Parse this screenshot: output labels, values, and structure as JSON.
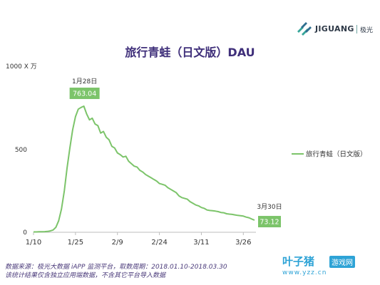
{
  "brand": {
    "name": "JIGUANG",
    "name_cn": "极光"
  },
  "watermark": {
    "logo": "叶子猪",
    "tag": "游戏网",
    "url": "www.yzz.cn"
  },
  "footer": {
    "line1": "数据来源：极光大数据 iAPP 监测平台，取数周期：2018.01.10-2018.03.30",
    "line2": "该统计结果仅含独立应用端数据，不含其它平台导入数据"
  },
  "colors": {
    "line": "#7cc46a",
    "callout_bg": "#7cc46a",
    "title": "#3f2f7a",
    "axis": "#bdbdbd"
  },
  "chart_data": {
    "type": "line",
    "title": "旅行青蛙（日文版）DAU",
    "ylabel": "1000 X 万",
    "xlabel": "",
    "ylim": [
      0,
      1000
    ],
    "yticks": [
      "0",
      "500",
      "1000"
    ],
    "xticks": [
      "1/10",
      "1/25",
      "2/9",
      "2/24",
      "3/11",
      "3/26"
    ],
    "legend_position": "right",
    "grid": false,
    "series": [
      {
        "name": "旅行青蛙（日文版）",
        "x": [
          "1/10",
          "1/11",
          "1/12",
          "1/13",
          "1/14",
          "1/15",
          "1/16",
          "1/17",
          "1/18",
          "1/19",
          "1/20",
          "1/21",
          "1/22",
          "1/23",
          "1/24",
          "1/25",
          "1/26",
          "1/27",
          "1/28",
          "1/29",
          "1/30",
          "1/31",
          "2/1",
          "2/2",
          "2/3",
          "2/4",
          "2/5",
          "2/6",
          "2/7",
          "2/8",
          "2/9",
          "2/10",
          "2/11",
          "2/12",
          "2/13",
          "2/14",
          "2/15",
          "2/16",
          "2/17",
          "2/18",
          "2/19",
          "2/20",
          "2/21",
          "2/22",
          "2/23",
          "2/24",
          "2/25",
          "2/26",
          "2/27",
          "2/28",
          "3/1",
          "3/2",
          "3/3",
          "3/4",
          "3/5",
          "3/6",
          "3/7",
          "3/8",
          "3/9",
          "3/10",
          "3/11",
          "3/12",
          "3/13",
          "3/14",
          "3/15",
          "3/16",
          "3/17",
          "3/18",
          "3/19",
          "3/20",
          "3/21",
          "3/22",
          "3/23",
          "3/24",
          "3/25",
          "3/26",
          "3/27",
          "3/28",
          "3/29",
          "3/30"
        ],
        "values": [
          2,
          2,
          3,
          3,
          4,
          5,
          8,
          14,
          30,
          70,
          140,
          250,
          390,
          510,
          620,
          700,
          745,
          755,
          763.04,
          715,
          680,
          690,
          655,
          645,
          600,
          610,
          575,
          560,
          520,
          510,
          480,
          470,
          455,
          460,
          430,
          415,
          400,
          395,
          375,
          365,
          350,
          340,
          330,
          320,
          310,
          295,
          290,
          285,
          270,
          260,
          250,
          240,
          220,
          210,
          205,
          200,
          185,
          175,
          165,
          160,
          150,
          145,
          135,
          132,
          130,
          128,
          125,
          120,
          118,
          112,
          110,
          108,
          105,
          102,
          100,
          98,
          92,
          88,
          80,
          73.12
        ]
      }
    ],
    "annotations": [
      {
        "date": "1月28日",
        "x": "1/28",
        "value": "763.04"
      },
      {
        "date": "3月30日",
        "x": "3/30",
        "value": "73.12"
      }
    ]
  }
}
